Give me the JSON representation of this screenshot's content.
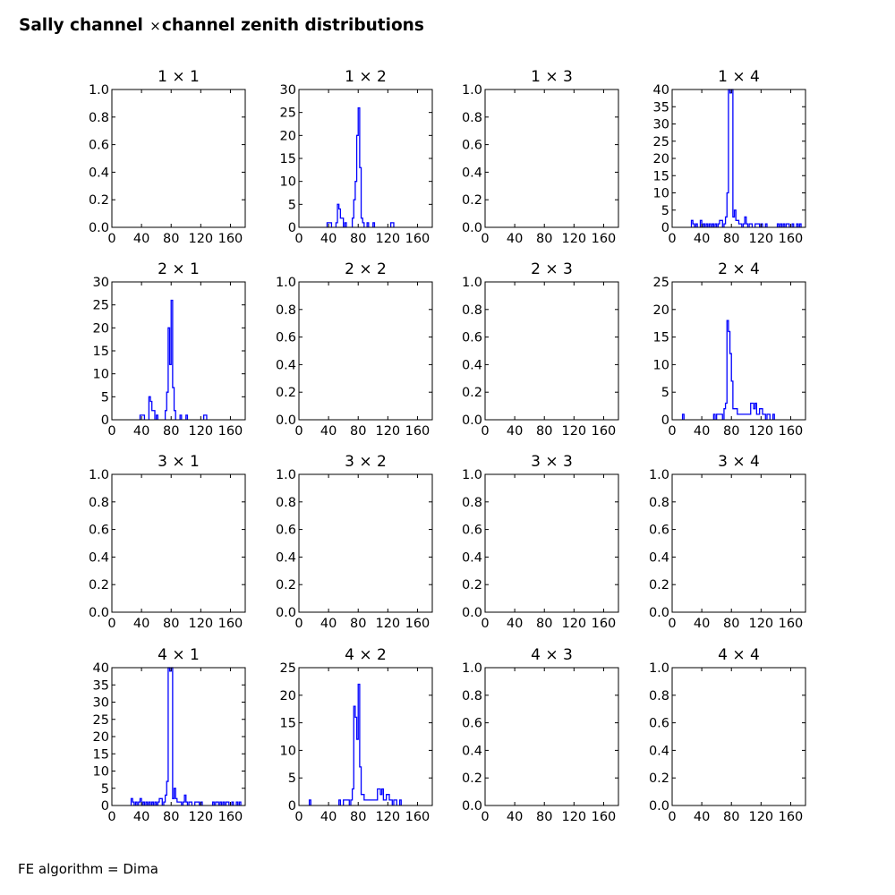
{
  "figure": {
    "title_prefix": "Sally channel",
    "title_times": "×",
    "title_suffix": "channel zenith distributions",
    "footnote": "FE algorithm = Dima"
  },
  "colors": {
    "series": "#0000ff",
    "axes": "#000000",
    "background": "#ffffff"
  },
  "chart_data": [
    {
      "type": "bar",
      "row": 1,
      "col": 1,
      "title": "1  × 1",
      "xlim": [
        0,
        180
      ],
      "ylim": [
        0,
        1
      ],
      "xticks": [
        0,
        40,
        80,
        120,
        160
      ],
      "yticks": [
        "0.0",
        "0.2",
        "0.4",
        "0.6",
        "0.8",
        "1.0"
      ],
      "bins": []
    },
    {
      "type": "bar",
      "row": 1,
      "col": 2,
      "title": "1  × 2",
      "xlim": [
        0,
        180
      ],
      "ylim": [
        0,
        30
      ],
      "xticks": [
        0,
        40,
        80,
        120,
        160
      ],
      "yticks": [
        "0",
        "5",
        "10",
        "15",
        "20",
        "25",
        "30"
      ],
      "bins": [
        [
          38,
          1
        ],
        [
          40,
          1
        ],
        [
          42,
          1
        ],
        [
          50,
          1
        ],
        [
          52,
          5
        ],
        [
          54,
          4
        ],
        [
          56,
          2
        ],
        [
          58,
          2
        ],
        [
          62,
          1
        ],
        [
          72,
          2
        ],
        [
          74,
          6
        ],
        [
          76,
          10
        ],
        [
          78,
          20
        ],
        [
          80,
          26
        ],
        [
          82,
          13
        ],
        [
          84,
          2
        ],
        [
          86,
          1
        ],
        [
          92,
          1
        ],
        [
          100,
          1
        ],
        [
          124,
          1
        ],
        [
          126,
          1
        ]
      ]
    },
    {
      "type": "bar",
      "row": 1,
      "col": 3,
      "title": "1  × 3",
      "xlim": [
        0,
        180
      ],
      "ylim": [
        0,
        1
      ],
      "xticks": [
        0,
        40,
        80,
        120,
        160
      ],
      "yticks": [
        "0.0",
        "0.2",
        "0.4",
        "0.6",
        "0.8",
        "1.0"
      ],
      "bins": []
    },
    {
      "type": "bar",
      "row": 1,
      "col": 4,
      "title": "1  × 4",
      "xlim": [
        0,
        180
      ],
      "ylim": [
        0,
        40
      ],
      "xticks": [
        0,
        40,
        80,
        120,
        160
      ],
      "yticks": [
        "0",
        "5",
        "10",
        "15",
        "20",
        "25",
        "30",
        "35",
        "40"
      ],
      "bins": [
        [
          26,
          2
        ],
        [
          28,
          1
        ],
        [
          32,
          1
        ],
        [
          38,
          2
        ],
        [
          42,
          1
        ],
        [
          46,
          1
        ],
        [
          50,
          1
        ],
        [
          54,
          1
        ],
        [
          58,
          1
        ],
        [
          62,
          1
        ],
        [
          64,
          2
        ],
        [
          66,
          2
        ],
        [
          70,
          1
        ],
        [
          72,
          3
        ],
        [
          74,
          10
        ],
        [
          76,
          40
        ],
        [
          78,
          39
        ],
        [
          80,
          40
        ],
        [
          82,
          3
        ],
        [
          84,
          5
        ],
        [
          86,
          2
        ],
        [
          88,
          2
        ],
        [
          90,
          1
        ],
        [
          92,
          1
        ],
        [
          96,
          1
        ],
        [
          98,
          3
        ],
        [
          100,
          1
        ],
        [
          104,
          1
        ],
        [
          106,
          1
        ],
        [
          112,
          1
        ],
        [
          114,
          1
        ],
        [
          116,
          1
        ],
        [
          120,
          1
        ],
        [
          126,
          1
        ],
        [
          142,
          1
        ],
        [
          146,
          1
        ],
        [
          150,
          1
        ],
        [
          154,
          1
        ],
        [
          156,
          1
        ],
        [
          162,
          1
        ],
        [
          168,
          1
        ],
        [
          172,
          1
        ]
      ]
    },
    {
      "type": "bar",
      "row": 2,
      "col": 1,
      "title": "2  × 1",
      "xlim": [
        0,
        180
      ],
      "ylim": [
        0,
        30
      ],
      "xticks": [
        0,
        40,
        80,
        120,
        160
      ],
      "yticks": [
        "0",
        "5",
        "10",
        "15",
        "20",
        "25",
        "30"
      ],
      "bins": [
        [
          38,
          1
        ],
        [
          40,
          1
        ],
        [
          42,
          1
        ],
        [
          50,
          5
        ],
        [
          52,
          4
        ],
        [
          54,
          2
        ],
        [
          56,
          2
        ],
        [
          60,
          1
        ],
        [
          72,
          2
        ],
        [
          74,
          6
        ],
        [
          76,
          20
        ],
        [
          78,
          12
        ],
        [
          80,
          26
        ],
        [
          82,
          7
        ],
        [
          84,
          2
        ],
        [
          92,
          1
        ],
        [
          100,
          1
        ],
        [
          124,
          1
        ],
        [
          126,
          1
        ]
      ]
    },
    {
      "type": "bar",
      "row": 2,
      "col": 2,
      "title": "2  × 2",
      "xlim": [
        0,
        180
      ],
      "ylim": [
        0,
        1
      ],
      "xticks": [
        0,
        40,
        80,
        120,
        160
      ],
      "yticks": [
        "0.0",
        "0.2",
        "0.4",
        "0.6",
        "0.8",
        "1.0"
      ],
      "bins": []
    },
    {
      "type": "bar",
      "row": 2,
      "col": 3,
      "title": "2  × 3",
      "xlim": [
        0,
        180
      ],
      "ylim": [
        0,
        1
      ],
      "xticks": [
        0,
        40,
        80,
        120,
        160
      ],
      "yticks": [
        "0.0",
        "0.2",
        "0.4",
        "0.6",
        "0.8",
        "1.0"
      ],
      "bins": []
    },
    {
      "type": "bar",
      "row": 2,
      "col": 4,
      "title": "2  × 4",
      "xlim": [
        0,
        180
      ],
      "ylim": [
        0,
        25
      ],
      "xticks": [
        0,
        40,
        80,
        120,
        160
      ],
      "yticks": [
        "0",
        "5",
        "10",
        "15",
        "20",
        "25"
      ],
      "bins": [
        [
          14,
          1
        ],
        [
          56,
          1
        ],
        [
          60,
          1
        ],
        [
          62,
          1
        ],
        [
          64,
          1
        ],
        [
          66,
          1
        ],
        [
          70,
          2
        ],
        [
          72,
          3
        ],
        [
          74,
          18
        ],
        [
          76,
          16
        ],
        [
          78,
          12
        ],
        [
          80,
          7
        ],
        [
          82,
          2
        ],
        [
          84,
          2
        ],
        [
          86,
          2
        ],
        [
          88,
          1
        ],
        [
          90,
          1
        ],
        [
          92,
          1
        ],
        [
          94,
          1
        ],
        [
          96,
          1
        ],
        [
          98,
          1
        ],
        [
          100,
          1
        ],
        [
          102,
          1
        ],
        [
          104,
          1
        ],
        [
          106,
          3
        ],
        [
          108,
          3
        ],
        [
          110,
          2
        ],
        [
          112,
          3
        ],
        [
          114,
          1
        ],
        [
          116,
          1
        ],
        [
          118,
          2
        ],
        [
          120,
          2
        ],
        [
          122,
          1
        ],
        [
          124,
          1
        ],
        [
          128,
          1
        ],
        [
          130,
          1
        ],
        [
          136,
          1
        ]
      ]
    },
    {
      "type": "bar",
      "row": 3,
      "col": 1,
      "title": "3  × 1",
      "xlim": [
        0,
        180
      ],
      "ylim": [
        0,
        1
      ],
      "xticks": [
        0,
        40,
        80,
        120,
        160
      ],
      "yticks": [
        "0.0",
        "0.2",
        "0.4",
        "0.6",
        "0.8",
        "1.0"
      ],
      "bins": []
    },
    {
      "type": "bar",
      "row": 3,
      "col": 2,
      "title": "3  × 2",
      "xlim": [
        0,
        180
      ],
      "ylim": [
        0,
        1
      ],
      "xticks": [
        0,
        40,
        80,
        120,
        160
      ],
      "yticks": [
        "0.0",
        "0.2",
        "0.4",
        "0.6",
        "0.8",
        "1.0"
      ],
      "bins": []
    },
    {
      "type": "bar",
      "row": 3,
      "col": 3,
      "title": "3  × 3",
      "xlim": [
        0,
        180
      ],
      "ylim": [
        0,
        1
      ],
      "xticks": [
        0,
        40,
        80,
        120,
        160
      ],
      "yticks": [
        "0.0",
        "0.2",
        "0.4",
        "0.6",
        "0.8",
        "1.0"
      ],
      "bins": []
    },
    {
      "type": "bar",
      "row": 3,
      "col": 4,
      "title": "3  × 4",
      "xlim": [
        0,
        180
      ],
      "ylim": [
        0,
        1
      ],
      "xticks": [
        0,
        40,
        80,
        120,
        160
      ],
      "yticks": [
        "0.0",
        "0.2",
        "0.4",
        "0.6",
        "0.8",
        "1.0"
      ],
      "bins": []
    },
    {
      "type": "bar",
      "row": 4,
      "col": 1,
      "title": "4  × 1",
      "xlim": [
        0,
        180
      ],
      "ylim": [
        0,
        40
      ],
      "xticks": [
        0,
        40,
        80,
        120,
        160
      ],
      "yticks": [
        "0",
        "5",
        "10",
        "15",
        "20",
        "25",
        "30",
        "35",
        "40"
      ],
      "bins": [
        [
          26,
          2
        ],
        [
          28,
          1
        ],
        [
          32,
          1
        ],
        [
          36,
          1
        ],
        [
          38,
          2
        ],
        [
          42,
          1
        ],
        [
          46,
          1
        ],
        [
          50,
          1
        ],
        [
          54,
          1
        ],
        [
          58,
          1
        ],
        [
          62,
          1
        ],
        [
          64,
          2
        ],
        [
          66,
          2
        ],
        [
          70,
          1
        ],
        [
          72,
          3
        ],
        [
          74,
          7
        ],
        [
          76,
          40
        ],
        [
          78,
          39
        ],
        [
          80,
          40
        ],
        [
          82,
          2
        ],
        [
          84,
          5
        ],
        [
          86,
          2
        ],
        [
          88,
          1
        ],
        [
          90,
          1
        ],
        [
          92,
          1
        ],
        [
          96,
          1
        ],
        [
          98,
          3
        ],
        [
          100,
          1
        ],
        [
          104,
          1
        ],
        [
          106,
          1
        ],
        [
          112,
          1
        ],
        [
          114,
          1
        ],
        [
          116,
          1
        ],
        [
          120,
          1
        ],
        [
          136,
          1
        ],
        [
          140,
          1
        ],
        [
          142,
          1
        ],
        [
          146,
          1
        ],
        [
          150,
          1
        ],
        [
          154,
          1
        ],
        [
          156,
          1
        ],
        [
          162,
          1
        ],
        [
          168,
          1
        ],
        [
          172,
          1
        ]
      ]
    },
    {
      "type": "bar",
      "row": 4,
      "col": 2,
      "title": "4  × 2",
      "xlim": [
        0,
        180
      ],
      "ylim": [
        0,
        25
      ],
      "xticks": [
        0,
        40,
        80,
        120,
        160
      ],
      "yticks": [
        "0",
        "5",
        "10",
        "15",
        "20",
        "25"
      ],
      "bins": [
        [
          14,
          1
        ],
        [
          54,
          1
        ],
        [
          60,
          1
        ],
        [
          62,
          1
        ],
        [
          64,
          1
        ],
        [
          66,
          1
        ],
        [
          70,
          1
        ],
        [
          72,
          3
        ],
        [
          74,
          18
        ],
        [
          76,
          16
        ],
        [
          78,
          12
        ],
        [
          80,
          22
        ],
        [
          82,
          7
        ],
        [
          84,
          2
        ],
        [
          86,
          2
        ],
        [
          88,
          1
        ],
        [
          90,
          1
        ],
        [
          92,
          1
        ],
        [
          94,
          1
        ],
        [
          96,
          1
        ],
        [
          98,
          1
        ],
        [
          100,
          1
        ],
        [
          102,
          1
        ],
        [
          104,
          1
        ],
        [
          106,
          3
        ],
        [
          108,
          3
        ],
        [
          110,
          2
        ],
        [
          112,
          3
        ],
        [
          114,
          1
        ],
        [
          116,
          1
        ],
        [
          118,
          2
        ],
        [
          120,
          2
        ],
        [
          122,
          1
        ],
        [
          124,
          1
        ],
        [
          128,
          1
        ],
        [
          130,
          1
        ],
        [
          136,
          1
        ]
      ]
    },
    {
      "type": "bar",
      "row": 4,
      "col": 3,
      "title": "4  × 3",
      "xlim": [
        0,
        180
      ],
      "ylim": [
        0,
        1
      ],
      "xticks": [
        0,
        40,
        80,
        120,
        160
      ],
      "yticks": [
        "0.0",
        "0.2",
        "0.4",
        "0.6",
        "0.8",
        "1.0"
      ],
      "bins": []
    },
    {
      "type": "bar",
      "row": 4,
      "col": 4,
      "title": "4  × 4",
      "xlim": [
        0,
        180
      ],
      "ylim": [
        0,
        1
      ],
      "xticks": [
        0,
        40,
        80,
        120,
        160
      ],
      "yticks": [
        "0.0",
        "0.2",
        "0.4",
        "0.6",
        "0.8",
        "1.0"
      ],
      "bins": []
    }
  ]
}
